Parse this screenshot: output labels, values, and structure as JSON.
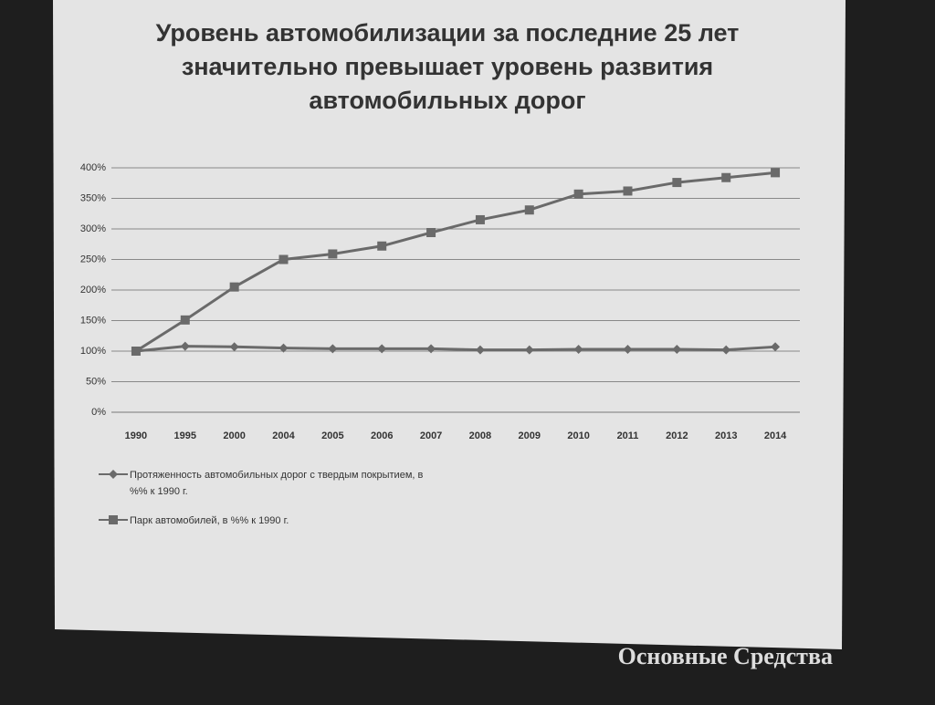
{
  "chart_data": {
    "type": "line",
    "title": "Уровень автомобилизации за последние 25 лет значительно превышает уровень развития автомобильных дорог",
    "categories": [
      "1990",
      "1995",
      "2000",
      "2004",
      "2005",
      "2006",
      "2007",
      "2008",
      "2009",
      "2010",
      "2011",
      "2012",
      "2013",
      "2014"
    ],
    "series": [
      {
        "name": "Протяженность автомобильных дорог с твердым покрытием, в %% к 1990 г.",
        "color": "#6a6a6a",
        "marker": "diamond",
        "values": [
          100,
          108,
          107,
          105,
          104,
          104,
          104,
          102,
          102,
          103,
          103,
          103,
          102,
          107
        ]
      },
      {
        "name": "Парк автомобилей, в %% к 1990 г.",
        "color": "#6a6a6a",
        "marker": "square",
        "values": [
          100,
          151,
          205,
          250,
          259,
          272,
          294,
          315,
          331,
          357,
          362,
          376,
          384,
          392
        ]
      }
    ],
    "ylim": [
      0,
      400
    ],
    "yticks": [
      {
        "value": 0,
        "label": "0%"
      },
      {
        "value": 50,
        "label": "50%"
      },
      {
        "value": 100,
        "label": "100%"
      },
      {
        "value": 150,
        "label": "150%"
      },
      {
        "value": 200,
        "label": "200%"
      },
      {
        "value": 250,
        "label": "250%"
      },
      {
        "value": 300,
        "label": "300%"
      },
      {
        "value": 350,
        "label": "350%"
      },
      {
        "value": 400,
        "label": "400%"
      }
    ],
    "grid": true,
    "legend": "bottom",
    "watermark": "Основные Средства"
  }
}
